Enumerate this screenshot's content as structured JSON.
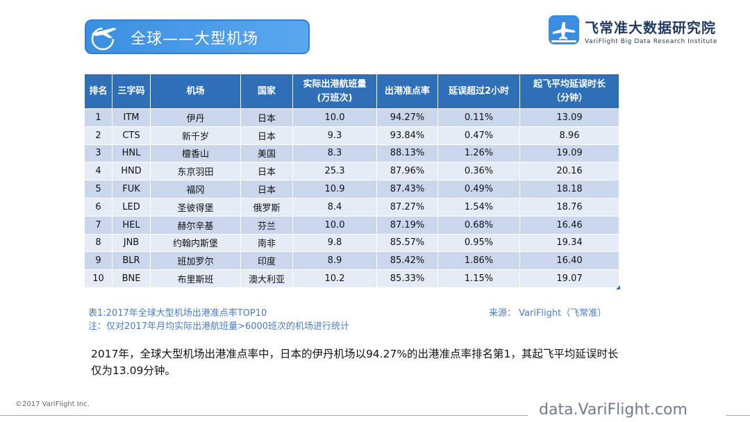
{
  "header": {
    "title": "全球——大型机场",
    "brand_name": "飞常准大数据研究院",
    "brand_sub": "VariFlight Big Data Research  Institute"
  },
  "table": {
    "columns": [
      "排名",
      "三字码",
      "机场",
      "国家",
      "实际出港航班量\n(万班次)",
      "出港准点率",
      "延误超过2小时",
      "起飞平均延误时长\n（分钟）"
    ],
    "rows": [
      [
        "1",
        "ITM",
        "伊丹",
        "日本",
        "10.0",
        "94.27%",
        "0.11%",
        "13.09"
      ],
      [
        "2",
        "CTS",
        "新千岁",
        "日本",
        "9.3",
        "93.84%",
        "0.47%",
        "8.96"
      ],
      [
        "3",
        "HNL",
        "檀香山",
        "美国",
        "8.3",
        "88.13%",
        "1.26%",
        "19.09"
      ],
      [
        "4",
        "HND",
        "东京羽田",
        "日本",
        "25.3",
        "87.96%",
        "0.36%",
        "20.16"
      ],
      [
        "5",
        "FUK",
        "福冈",
        "日本",
        "10.9",
        "87.43%",
        "0.49%",
        "18.18"
      ],
      [
        "6",
        "LED",
        "圣彼得堡",
        "俄罗斯",
        "8.4",
        "87.27%",
        "1.54%",
        "18.76"
      ],
      [
        "7",
        "HEL",
        "赫尔辛基",
        "芬兰",
        "10.0",
        "87.19%",
        "0.68%",
        "16.46"
      ],
      [
        "8",
        "JNB",
        "约翰内斯堡",
        "南非",
        "9.8",
        "85.57%",
        "0.95%",
        "19.34"
      ],
      [
        "9",
        "BLR",
        "班加罗尔",
        "印度",
        "8.9",
        "85.42%",
        "1.86%",
        "16.40"
      ],
      [
        "10",
        "BNE",
        "布里斯班",
        "澳大利亚",
        "10.2",
        "85.33%",
        "1.15%",
        "19.07"
      ]
    ]
  },
  "captions": {
    "caption1": "表1:2017年全球大型机场出港准点率TOP10",
    "caption2": "注：仅对2017年月均实际出港航班量>6000班次的机场进行统计",
    "source": "来源： VariFlight（飞常准）"
  },
  "summary": "2017年，全球大型机场出港准点率中，日本的伊丹机场以94.27%的出港准点率排名第1，其起飞平均延误时长仅为13.09分钟。",
  "footer": {
    "copyright": "©2017 VariFlight Inc.",
    "site": "data.VariFlight.com"
  },
  "colors": {
    "accent": "#2e6fb8",
    "row_odd": "#c9d6ec",
    "row_even": "#e6ecf6",
    "caption": "#4a7cc7"
  }
}
